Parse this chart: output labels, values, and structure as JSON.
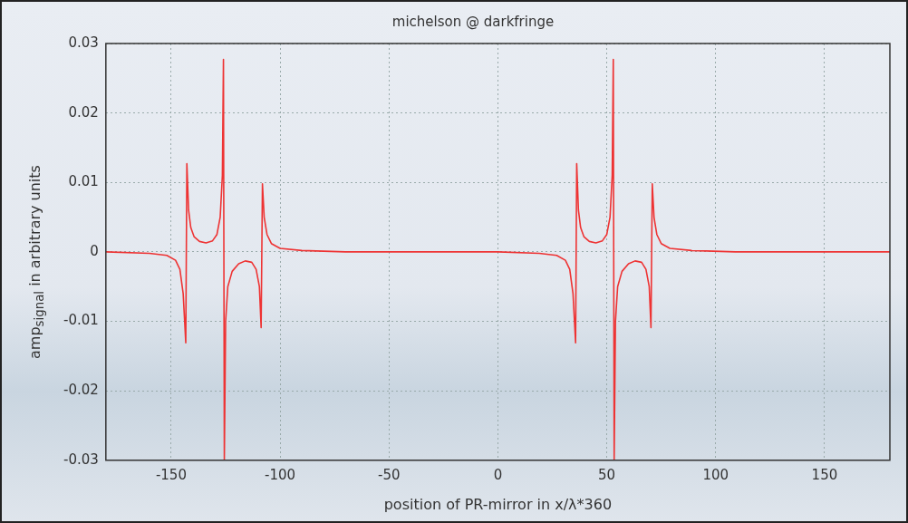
{
  "chart_data": {
    "type": "line",
    "title": "michelson @ darkfringe",
    "xlabel": "position of PR-mirror in x/λ*360",
    "ylabel": "amp$_{signal}$ in arbitrary units",
    "xlim": [
      -180,
      180
    ],
    "xticks": [
      -150,
      -100,
      -50,
      0,
      50,
      100,
      150
    ],
    "ylim": [
      -0.03,
      0.03
    ],
    "yticks": [
      -0.03,
      -0.02,
      -0.01,
      0,
      0.01,
      0.02,
      0.03
    ],
    "grid": true,
    "legend": false,
    "marker": "none",
    "line_style": "solid",
    "series": [
      {
        "color": "#ee3333",
        "x": [
          -180,
          -160,
          -152,
          -148,
          -146,
          -144.5,
          -143.3,
          -142.8,
          -142,
          -141,
          -139.5,
          -137,
          -134,
          -131,
          -129,
          -127.5,
          -126.5,
          -126,
          -125.6,
          -125,
          -124,
          -122,
          -119,
          -116,
          -113,
          -111,
          -109.5,
          -108.7,
          -108.1,
          -107.3,
          -106,
          -104,
          -100,
          -90,
          -70,
          0,
          19,
          27,
          31,
          33,
          34.5,
          35.7,
          36.2,
          37,
          38,
          39.5,
          42,
          45,
          48,
          50,
          51.5,
          52.5,
          53,
          53.4,
          54,
          55,
          57,
          60,
          63,
          66,
          68,
          69.5,
          70.3,
          70.9,
          71.7,
          73,
          75,
          79,
          89,
          109,
          180
        ],
        "values": [
          0,
          -0.0002,
          -0.0005,
          -0.0012,
          -0.0025,
          -0.006,
          -0.0131,
          0.0127,
          0.006,
          0.0035,
          0.0022,
          0.0015,
          0.0013,
          0.0016,
          0.0025,
          0.005,
          0.011,
          0.0277,
          -0.03,
          -0.01,
          -0.005,
          -0.0028,
          -0.0017,
          -0.0013,
          -0.0015,
          -0.0025,
          -0.005,
          -0.0109,
          0.0098,
          0.005,
          0.0025,
          0.0012,
          0.0005,
          0.0002,
          0,
          0,
          -0.0002,
          -0.0005,
          -0.0012,
          -0.0025,
          -0.006,
          -0.0131,
          0.0127,
          0.006,
          0.0035,
          0.0022,
          0.0015,
          0.0013,
          0.0016,
          0.0025,
          0.005,
          0.011,
          0.0277,
          -0.03,
          -0.01,
          -0.005,
          -0.0028,
          -0.0017,
          -0.0013,
          -0.0015,
          -0.0025,
          -0.005,
          -0.0109,
          0.0098,
          0.005,
          0.0025,
          0.0012,
          0.0005,
          0.0002,
          0,
          0
        ]
      }
    ]
  }
}
